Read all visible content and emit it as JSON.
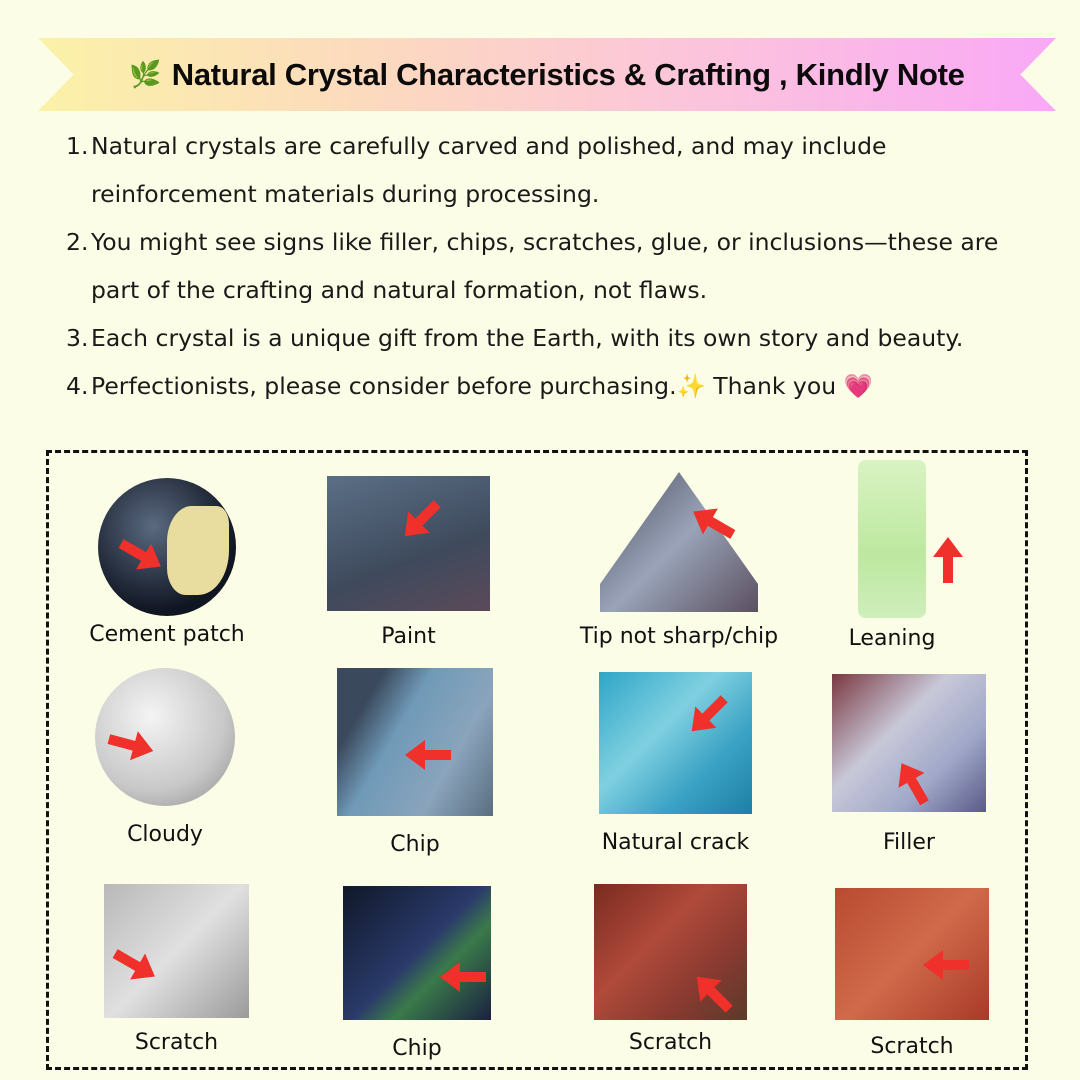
{
  "banner": {
    "icon": "herb-leaf-icon",
    "title": "Natural Crystal Characteristics & Crafting , Kindly Note"
  },
  "notes": [
    {
      "number": "1.",
      "text": "Natural crystals are carefully carved and polished, and may include reinforcement materials during processing."
    },
    {
      "number": "2.",
      "text": "You might see signs like filler, chips, scratches, glue, or inclusions—these are part of the crafting and natural formation, not flaws."
    },
    {
      "number": "3.",
      "text": "Each crystal is a unique gift from the Earth, with its own story and beauty."
    },
    {
      "number": "4.",
      "text": "Perfectionists, please consider before purchasing.✨  Thank you 💗"
    }
  ],
  "examples": [
    {
      "label": "Cement patch"
    },
    {
      "label": "Paint"
    },
    {
      "label": "Tip not sharp/chip"
    },
    {
      "label": "Leaning"
    },
    {
      "label": "Cloudy"
    },
    {
      "label": "Chip"
    },
    {
      "label": "Natural crack"
    },
    {
      "label": "Filler"
    },
    {
      "label": "Scratch"
    },
    {
      "label": "Chip"
    },
    {
      "label": "Scratch"
    },
    {
      "label": "Scratch"
    }
  ],
  "colors": {
    "background": "#fbfde6",
    "arrow": "#f0302a"
  }
}
